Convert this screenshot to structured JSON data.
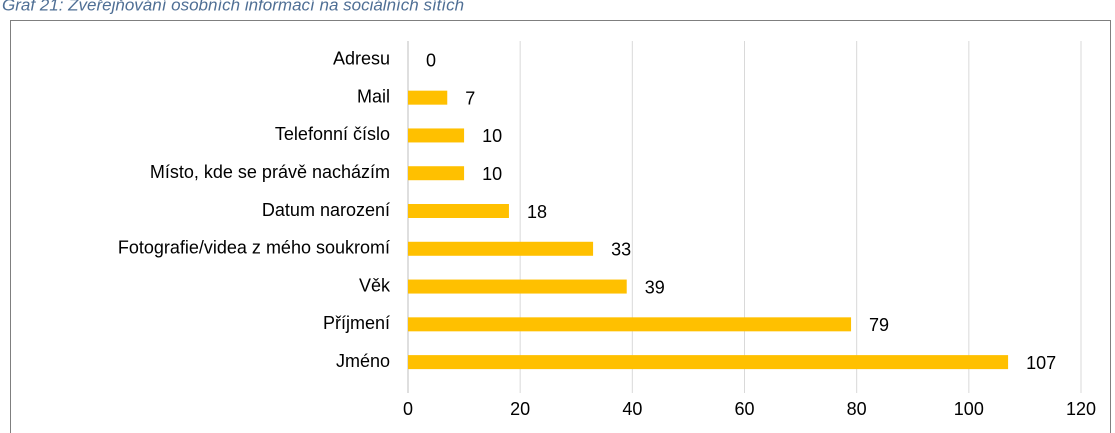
{
  "chart_data": {
    "type": "bar",
    "orientation": "horizontal",
    "title": "Graf 21: Zveřejňování osobních informací na sociálních sítích",
    "categories": [
      "Adresu",
      "Mail",
      "Telefonní číslo",
      "Místo, kde se právě nacházím",
      "Datum narození",
      "Fotografie/videa z mého soukromí",
      "Věk",
      "Příjmení",
      "Jméno"
    ],
    "values": [
      0,
      7,
      10,
      10,
      18,
      33,
      39,
      79,
      107
    ],
    "color": "#ffc000",
    "xlim": [
      0,
      120
    ],
    "xticks": [
      0,
      20,
      40,
      60,
      80,
      100,
      120
    ],
    "grid": true
  }
}
